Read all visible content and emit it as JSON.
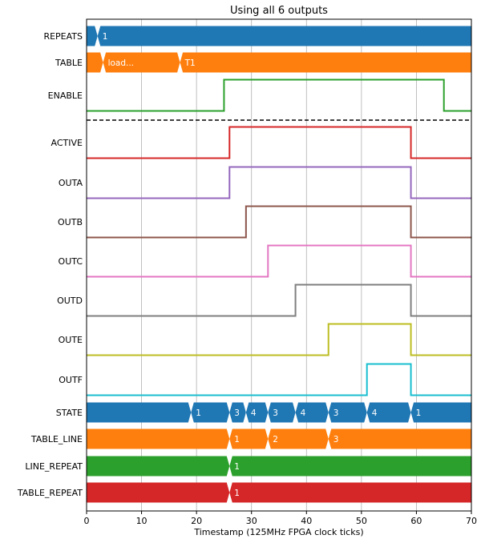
{
  "chart_data": {
    "type": "timing",
    "title": "Using all 6 outputs",
    "xlabel": "Timestamp (125MHz FPGA clock ticks)",
    "xlim": [
      0,
      70
    ],
    "xticks": [
      0,
      10,
      20,
      30,
      40,
      50,
      60,
      70
    ],
    "grid": "vertical",
    "separator_after": "ENABLE",
    "signals": [
      {
        "name": "REPEATS",
        "kind": "bus",
        "color": "#1f77b4",
        "segments": [
          {
            "start": 0,
            "end": 2,
            "label": ""
          },
          {
            "start": 2,
            "end": 70,
            "label": "1"
          }
        ]
      },
      {
        "name": "TABLE",
        "kind": "bus",
        "color": "#ff7f0e",
        "segments": [
          {
            "start": 0,
            "end": 3,
            "label": ""
          },
          {
            "start": 3,
            "end": 17,
            "label": "load..."
          },
          {
            "start": 17,
            "end": 70,
            "label": "T1"
          }
        ]
      },
      {
        "name": "ENABLE",
        "kind": "bit",
        "color": "#2ca02c",
        "levels": [
          [
            0,
            0
          ],
          [
            25,
            1
          ],
          [
            65,
            0
          ]
        ]
      },
      {
        "name": "ACTIVE",
        "kind": "bit",
        "color": "#d62728",
        "levels": [
          [
            0,
            0
          ],
          [
            26,
            1
          ],
          [
            59,
            0
          ]
        ]
      },
      {
        "name": "OUTA",
        "kind": "bit",
        "color": "#9467bd",
        "levels": [
          [
            0,
            0
          ],
          [
            26,
            1
          ],
          [
            59,
            0
          ]
        ]
      },
      {
        "name": "OUTB",
        "kind": "bit",
        "color": "#8c564b",
        "levels": [
          [
            0,
            0
          ],
          [
            29,
            1
          ],
          [
            59,
            0
          ]
        ]
      },
      {
        "name": "OUTC",
        "kind": "bit",
        "color": "#e377c2",
        "levels": [
          [
            0,
            0
          ],
          [
            33,
            1
          ],
          [
            59,
            0
          ]
        ]
      },
      {
        "name": "OUTD",
        "kind": "bit",
        "color": "#7f7f7f",
        "levels": [
          [
            0,
            0
          ],
          [
            38,
            1
          ],
          [
            59,
            0
          ]
        ]
      },
      {
        "name": "OUTE",
        "kind": "bit",
        "color": "#bcbd22",
        "levels": [
          [
            0,
            0
          ],
          [
            44,
            1
          ],
          [
            59,
            0
          ]
        ]
      },
      {
        "name": "OUTF",
        "kind": "bit",
        "color": "#17becf",
        "levels": [
          [
            0,
            0
          ],
          [
            51,
            1
          ],
          [
            59,
            0
          ]
        ]
      },
      {
        "name": "STATE",
        "kind": "bus",
        "color": "#1f77b4",
        "segments": [
          {
            "start": 0,
            "end": 19,
            "label": ""
          },
          {
            "start": 19,
            "end": 26,
            "label": "1"
          },
          {
            "start": 26,
            "end": 29,
            "label": "3"
          },
          {
            "start": 29,
            "end": 33,
            "label": "4"
          },
          {
            "start": 33,
            "end": 38,
            "label": "3"
          },
          {
            "start": 38,
            "end": 44,
            "label": "4"
          },
          {
            "start": 44,
            "end": 51,
            "label": "3"
          },
          {
            "start": 51,
            "end": 59,
            "label": "4"
          },
          {
            "start": 59,
            "end": 70,
            "label": "1"
          }
        ]
      },
      {
        "name": "TABLE_LINE",
        "kind": "bus",
        "color": "#ff7f0e",
        "segments": [
          {
            "start": 0,
            "end": 26,
            "label": ""
          },
          {
            "start": 26,
            "end": 33,
            "label": "1"
          },
          {
            "start": 33,
            "end": 44,
            "label": "2"
          },
          {
            "start": 44,
            "end": 70,
            "label": "3"
          }
        ]
      },
      {
        "name": "LINE_REPEAT",
        "kind": "bus",
        "color": "#2ca02c",
        "segments": [
          {
            "start": 0,
            "end": 26,
            "label": ""
          },
          {
            "start": 26,
            "end": 70,
            "label": "1"
          }
        ]
      },
      {
        "name": "TABLE_REPEAT",
        "kind": "bus",
        "color": "#d62728",
        "segments": [
          {
            "start": 0,
            "end": 26,
            "label": ""
          },
          {
            "start": 26,
            "end": 70,
            "label": "1"
          }
        ]
      }
    ]
  }
}
